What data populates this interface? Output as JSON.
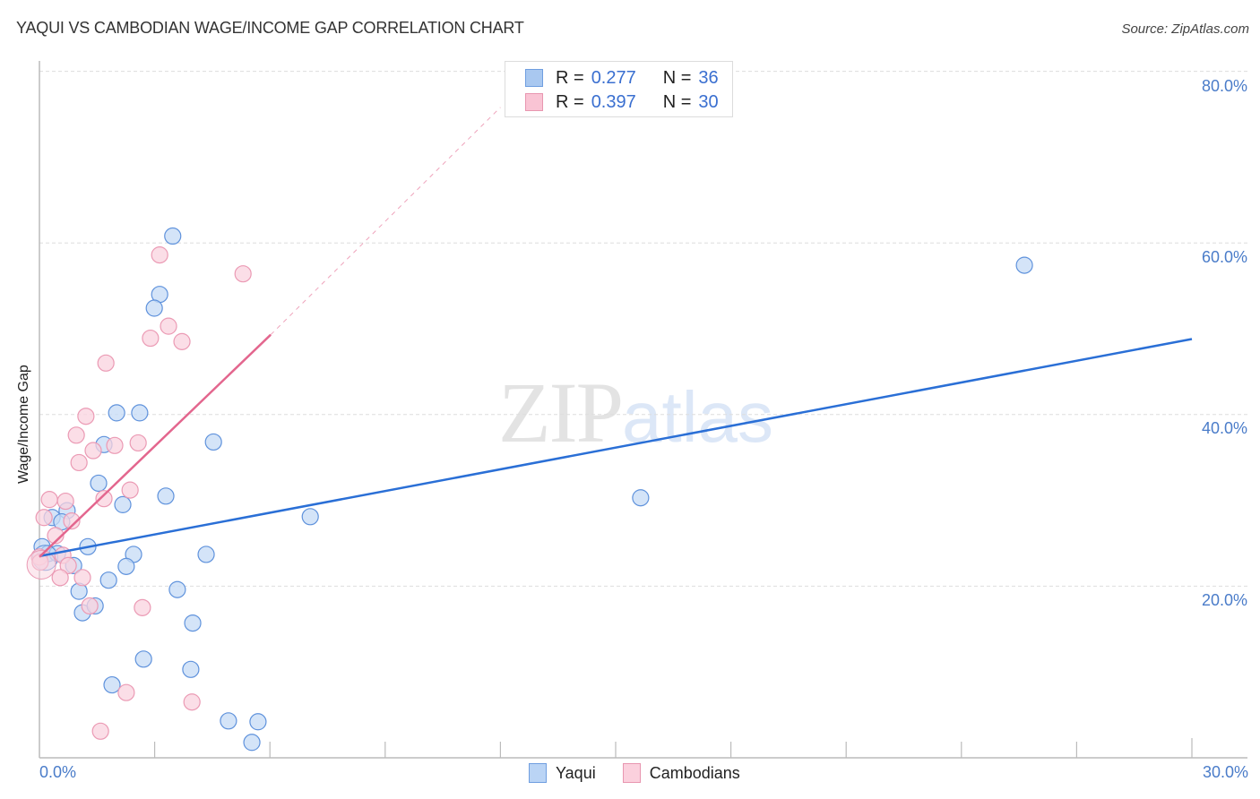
{
  "header": {
    "title": "YAQUI VS CAMBODIAN WAGE/INCOME GAP CORRELATION CHART",
    "source": "Source: ZipAtlas.com"
  },
  "legend": {
    "rows": [
      {
        "series": "Yaqui",
        "r_label": "R =",
        "r_value": "0.277",
        "n_label": "N =",
        "n_value": "36",
        "color": "#a9c8f0",
        "border": "#6f9ee0"
      },
      {
        "series": "Cambodians",
        "r_label": "R =",
        "r_value": "0.397",
        "n_label": "N =",
        "n_value": "30",
        "color": "#f9c4d4",
        "border": "#e896b0"
      }
    ]
  },
  "bottom_legend": [
    {
      "label": "Yaqui",
      "color": "#bad4f5",
      "border": "#6f9ee0"
    },
    {
      "label": "Cambodians",
      "color": "#fbd0dd",
      "border": "#e896b0"
    }
  ],
  "axes": {
    "ylabel": "Wage/Income Gap",
    "y_ticks": [
      "80.0%",
      "60.0%",
      "40.0%",
      "20.0%"
    ],
    "x_min_label": "0.0%",
    "x_max_label": "30.0%"
  },
  "watermark": {
    "zip": "ZIP",
    "atlas": "atlas"
  },
  "colors": {
    "yaqui_fill": "#c5dbf6",
    "yaqui_stroke": "#5f92dc",
    "yaqui_line": "#2a6fd6",
    "cambodian_fill": "#fad3df",
    "cambodian_stroke": "#eb9ab4",
    "cambodian_line": "#e3668e",
    "tick_label": "#4a7cc9",
    "grid": "#dddddd"
  },
  "chart_data": {
    "type": "scatter",
    "title": "YAQUI VS CAMBODIAN WAGE/INCOME GAP CORRELATION CHART",
    "xlabel": "",
    "ylabel": "Wage/Income Gap",
    "xlim": [
      0,
      30
    ],
    "ylim": [
      0,
      82
    ],
    "x_unit": "%",
    "y_unit": "%",
    "x_tick_labels": [
      "0.0%",
      "30.0%"
    ],
    "y_tick_labels": [
      "20.0%",
      "40.0%",
      "60.0%",
      "80.0%"
    ],
    "grid": {
      "horizontal": true,
      "vertical": false,
      "style": "dashed"
    },
    "legend_position": "top-center and bottom-center",
    "series": [
      {
        "name": "Yaqui",
        "R": 0.277,
        "N": 36,
        "trendline": {
          "x": [
            0,
            30
          ],
          "y": [
            23.5,
            48.8
          ]
        },
        "points": [
          [
            3.47,
            60.8
          ],
          [
            3.13,
            54.0
          ],
          [
            2.99,
            52.4
          ],
          [
            2.01,
            40.2
          ],
          [
            2.61,
            40.2
          ],
          [
            4.53,
            36.8
          ],
          [
            1.68,
            36.5
          ],
          [
            1.54,
            32.0
          ],
          [
            3.29,
            30.5
          ],
          [
            2.17,
            29.5
          ],
          [
            0.72,
            28.8
          ],
          [
            0.33,
            28.0
          ],
          [
            7.05,
            28.1
          ],
          [
            15.65,
            30.3
          ],
          [
            25.64,
            57.4
          ],
          [
            0.58,
            27.5
          ],
          [
            1.26,
            24.6
          ],
          [
            0.07,
            24.6
          ],
          [
            0.23,
            23.8
          ],
          [
            0.47,
            23.8
          ],
          [
            2.45,
            23.7
          ],
          [
            4.34,
            23.7
          ],
          [
            0.89,
            22.4
          ],
          [
            2.26,
            22.3
          ],
          [
            1.8,
            20.7
          ],
          [
            1.03,
            19.4
          ],
          [
            3.59,
            19.6
          ],
          [
            1.12,
            16.9
          ],
          [
            1.45,
            17.7
          ],
          [
            3.99,
            15.7
          ],
          [
            2.71,
            11.5
          ],
          [
            3.94,
            10.3
          ],
          [
            1.89,
            8.5
          ],
          [
            4.92,
            4.3
          ],
          [
            5.69,
            4.2
          ],
          [
            5.53,
            1.8
          ]
        ]
      },
      {
        "name": "Cambodians",
        "R": 0.397,
        "N": 30,
        "trendline": {
          "x": [
            0,
            6.02
          ],
          "y": [
            23.4,
            49.3
          ],
          "dashed_extension_to": [
            12.0,
            75.8
          ]
        },
        "points": [
          [
            3.13,
            58.6
          ],
          [
            5.3,
            56.4
          ],
          [
            2.89,
            48.9
          ],
          [
            3.36,
            50.3
          ],
          [
            3.71,
            48.5
          ],
          [
            1.73,
            46.0
          ],
          [
            1.21,
            39.8
          ],
          [
            0.96,
            37.6
          ],
          [
            2.57,
            36.7
          ],
          [
            1.96,
            36.4
          ],
          [
            1.4,
            35.8
          ],
          [
            1.03,
            34.4
          ],
          [
            2.36,
            31.2
          ],
          [
            1.68,
            30.2
          ],
          [
            0.26,
            30.1
          ],
          [
            0.68,
            29.9
          ],
          [
            0.12,
            28.0
          ],
          [
            0.84,
            27.6
          ],
          [
            0.42,
            25.9
          ],
          [
            0.61,
            23.6
          ],
          [
            0.75,
            22.4
          ],
          [
            0.0,
            23.4
          ],
          [
            1.12,
            21.0
          ],
          [
            0.54,
            21.0
          ],
          [
            2.68,
            17.5
          ],
          [
            1.31,
            17.7
          ],
          [
            2.26,
            7.6
          ],
          [
            3.97,
            6.5
          ],
          [
            1.59,
            3.1
          ],
          [
            0.02,
            22.8
          ]
        ]
      }
    ]
  }
}
